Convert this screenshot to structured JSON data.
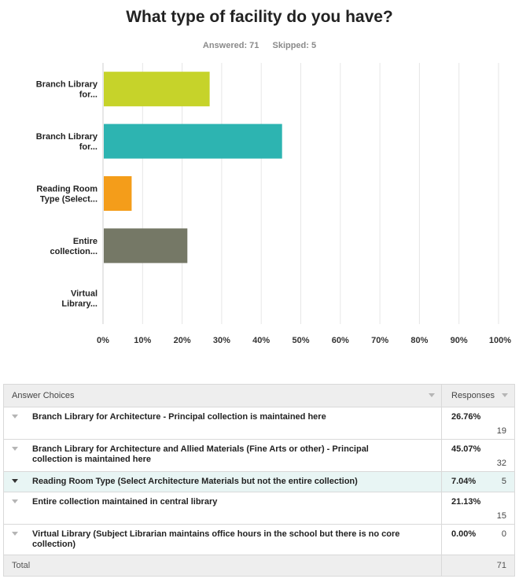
{
  "title": "What type of facility do you have?",
  "answered": "Answered: 71",
  "skipped": "Skipped: 5",
  "chart_data": {
    "type": "bar",
    "orientation": "horizontal",
    "categories": [
      [
        "Branch Library",
        "for..."
      ],
      [
        "Branch Library",
        "for..."
      ],
      [
        "Reading Room",
        "Type (Select..."
      ],
      [
        "Entire",
        "collection..."
      ],
      [
        "Virtual",
        "Library..."
      ]
    ],
    "values": [
      26.76,
      45.07,
      7.04,
      21.13,
      0.0
    ],
    "colors": [
      "#c6d32a",
      "#2db4b1",
      "#f49d1a",
      "#757866",
      "#888888"
    ],
    "xlim": [
      0,
      100
    ],
    "xticks": [
      "0%",
      "10%",
      "20%",
      "30%",
      "40%",
      "50%",
      "60%",
      "70%",
      "80%",
      "90%",
      "100%"
    ],
    "grid": true
  },
  "table": {
    "header_choices": "Answer Choices",
    "header_responses": "Responses",
    "rows": [
      {
        "choice": "Branch Library for Architecture - Principal collection is maintained here",
        "percent": "26.76%",
        "count": "19"
      },
      {
        "choice": "Branch Library for Architecture and Allied Materials (Fine Arts or other) - Principal collection is maintained here",
        "percent": "45.07%",
        "count": "32"
      },
      {
        "choice": "Reading Room Type (Select Architecture Materials but not the entire collection)",
        "percent": "7.04%",
        "count": "5"
      },
      {
        "choice": "Entire collection maintained in central library",
        "percent": "21.13%",
        "count": "15"
      },
      {
        "choice": "Virtual Library (Subject Librarian maintains office hours in the school but there is no core collection)",
        "percent": "0.00%",
        "count": "0"
      }
    ],
    "total_label": "Total",
    "total_value": "71"
  }
}
